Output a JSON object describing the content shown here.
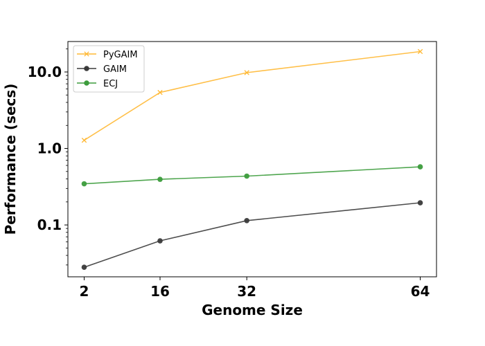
{
  "chart_data": {
    "type": "line",
    "xlabel": "Genome Size",
    "ylabel": "Performance (secs)",
    "yscale": "log",
    "xlim": [
      -1.0,
      67.0
    ],
    "ylim": [
      0.021,
      25.0
    ],
    "x": [
      2,
      16,
      32,
      64
    ],
    "xticks": [
      2,
      16,
      32,
      64
    ],
    "xtick_labels": [
      "2",
      "16",
      "32",
      "64"
    ],
    "yticks": [
      0.1,
      1.0,
      10.0
    ],
    "ytick_labels": [
      "0.1",
      "1.0",
      "10.0"
    ],
    "grid": false,
    "legend_position": "top-left",
    "series": [
      {
        "name": "PyGAIM",
        "color": "#FFB833",
        "marker": "x",
        "values": [
          1.28,
          5.4,
          9.8,
          18.5
        ]
      },
      {
        "name": "GAIM",
        "color": "#3a3a3a",
        "marker": "o",
        "values": [
          0.028,
          0.062,
          0.114,
          0.195
        ]
      },
      {
        "name": "ECJ",
        "color": "#3c9c3c",
        "marker": "o",
        "values": [
          0.345,
          0.395,
          0.435,
          0.575
        ]
      }
    ]
  }
}
